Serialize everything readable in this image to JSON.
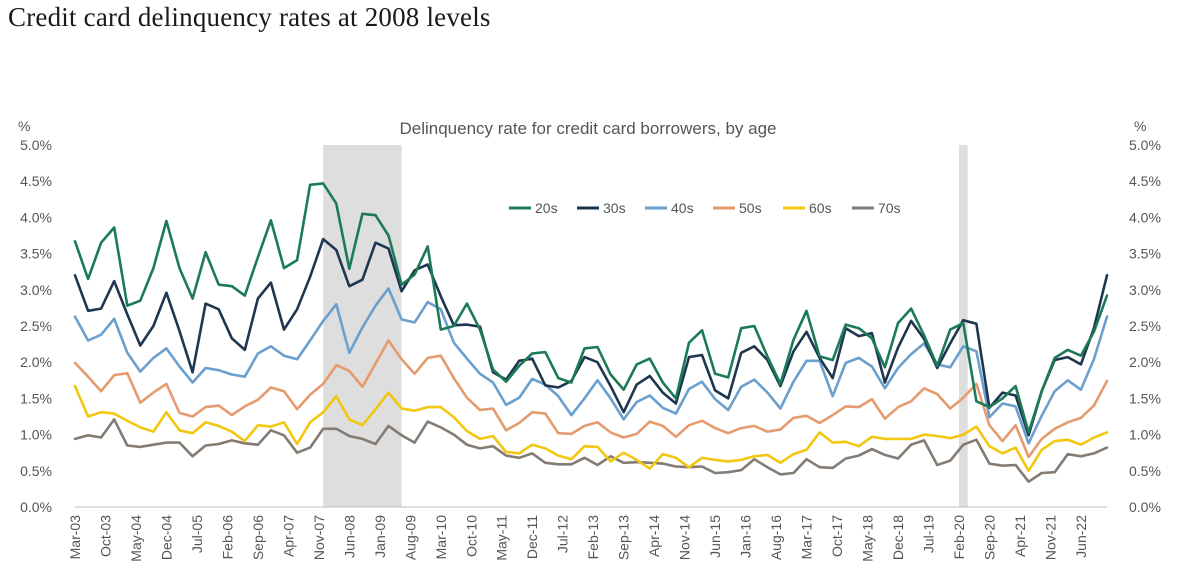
{
  "page": {
    "title": "Credit card delinquency rates at 2008 levels"
  },
  "chart_data": {
    "type": "line",
    "title": "Delinquency rate for credit card borrowers, by age",
    "ylabel_left": "%",
    "ylabel_right": "%",
    "ylim": [
      0,
      5
    ],
    "y_ticks": [
      "0.0%",
      "0.5%",
      "1.0%",
      "1.5%",
      "2.0%",
      "2.5%",
      "3.0%",
      "3.5%",
      "4.0%",
      "4.5%",
      "5.0%"
    ],
    "x_start": "2003-03",
    "x_end": "2022-12",
    "x_tick_labels": [
      "Mar-03",
      "Oct-03",
      "May-04",
      "Dec-04",
      "Jul-05",
      "Feb-06",
      "Sep-06",
      "Apr-07",
      "Nov-07",
      "Jun-08",
      "Jan-09",
      "Aug-09",
      "Mar-10",
      "Oct-10",
      "May-11",
      "Dec-11",
      "Jul-12",
      "Feb-13",
      "Sep-13",
      "Apr-14",
      "Nov-14",
      "Jun-15",
      "Jan-16",
      "Aug-16",
      "Mar-17",
      "Oct-17",
      "May-18",
      "Dec-18",
      "Jul-19",
      "Feb-20",
      "Sep-20",
      "Apr-21",
      "Nov-21",
      "Jun-22"
    ],
    "recessions": [
      {
        "start": "2007-12",
        "end": "2009-06"
      },
      {
        "start": "2020-02",
        "end": "2020-04"
      }
    ],
    "legend_position": "top-center",
    "series": [
      {
        "name": "20s",
        "color": "#1b7a57",
        "values": [
          3.67,
          3.15,
          3.65,
          3.86,
          2.78,
          2.85,
          3.3,
          3.95,
          3.3,
          2.88,
          3.52,
          3.07,
          3.05,
          2.92,
          3.45,
          3.96,
          3.3,
          3.41,
          4.45,
          4.47,
          4.19,
          3.29,
          4.05,
          4.03,
          3.75,
          3.07,
          3.21,
          3.6,
          2.45,
          2.5,
          2.81,
          2.45,
          1.9,
          1.73,
          1.95,
          2.12,
          2.14,
          1.78,
          1.72,
          2.19,
          2.21,
          1.83,
          1.62,
          1.97,
          2.05,
          1.72,
          1.5,
          2.27,
          2.44,
          1.84,
          1.79,
          2.47,
          2.5,
          2.08,
          1.7,
          2.31,
          2.71,
          2.08,
          2.03,
          2.52,
          2.47,
          2.33,
          1.93,
          2.54,
          2.74,
          2.37,
          1.95,
          2.45,
          2.54,
          1.46,
          1.38,
          1.5,
          1.67,
          1.03,
          1.6,
          2.06,
          2.17,
          2.09,
          2.42,
          2.92
        ]
      },
      {
        "name": "30s",
        "color": "#1f3650",
        "values": [
          3.2,
          2.71,
          2.74,
          3.12,
          2.66,
          2.23,
          2.5,
          2.96,
          2.43,
          1.86,
          2.81,
          2.73,
          2.33,
          2.17,
          2.88,
          3.1,
          2.45,
          2.73,
          3.18,
          3.7,
          3.55,
          3.05,
          3.14,
          3.65,
          3.57,
          2.98,
          3.27,
          3.35,
          2.91,
          2.51,
          2.52,
          2.49,
          1.86,
          1.76,
          2.02,
          2.05,
          1.68,
          1.65,
          1.74,
          2.07,
          2.0,
          1.67,
          1.31,
          1.69,
          1.81,
          1.58,
          1.43,
          2.07,
          2.1,
          1.61,
          1.5,
          2.13,
          2.22,
          2.03,
          1.67,
          2.15,
          2.42,
          2.06,
          1.78,
          2.47,
          2.36,
          2.4,
          1.72,
          2.2,
          2.57,
          2.32,
          1.92,
          2.26,
          2.58,
          2.53,
          1.37,
          1.58,
          1.54,
          0.99,
          1.6,
          2.03,
          2.07,
          1.97,
          2.47,
          3.2
        ]
      },
      {
        "name": "40s",
        "color": "#6a9fce",
        "values": [
          2.63,
          2.3,
          2.38,
          2.6,
          2.13,
          1.87,
          2.06,
          2.19,
          1.94,
          1.72,
          1.92,
          1.89,
          1.83,
          1.8,
          2.12,
          2.22,
          2.09,
          2.04,
          2.3,
          2.57,
          2.8,
          2.13,
          2.48,
          2.78,
          3.02,
          2.59,
          2.55,
          2.83,
          2.73,
          2.27,
          2.05,
          1.84,
          1.72,
          1.41,
          1.51,
          1.77,
          1.69,
          1.53,
          1.27,
          1.5,
          1.75,
          1.5,
          1.21,
          1.45,
          1.54,
          1.37,
          1.29,
          1.63,
          1.73,
          1.49,
          1.34,
          1.66,
          1.76,
          1.58,
          1.36,
          1.73,
          2.02,
          2.02,
          1.53,
          1.99,
          2.06,
          1.94,
          1.64,
          1.92,
          2.11,
          2.26,
          1.97,
          1.93,
          2.22,
          2.15,
          1.24,
          1.43,
          1.39,
          0.88,
          1.26,
          1.6,
          1.75,
          1.62,
          2.04,
          2.63
        ]
      },
      {
        "name": "50s",
        "color": "#e59b6e",
        "values": [
          1.99,
          1.8,
          1.6,
          1.82,
          1.85,
          1.44,
          1.58,
          1.7,
          1.3,
          1.25,
          1.38,
          1.4,
          1.27,
          1.39,
          1.48,
          1.65,
          1.6,
          1.35,
          1.55,
          1.7,
          1.96,
          1.88,
          1.66,
          1.98,
          2.3,
          2.04,
          1.84,
          2.06,
          2.09,
          1.78,
          1.51,
          1.34,
          1.36,
          1.06,
          1.16,
          1.31,
          1.29,
          1.02,
          1.01,
          1.12,
          1.17,
          1.03,
          0.96,
          1.01,
          1.18,
          1.12,
          0.97,
          1.13,
          1.19,
          1.09,
          1.02,
          1.09,
          1.12,
          1.04,
          1.07,
          1.23,
          1.26,
          1.16,
          1.27,
          1.39,
          1.38,
          1.49,
          1.22,
          1.38,
          1.46,
          1.64,
          1.56,
          1.36,
          1.51,
          1.7,
          1.13,
          0.91,
          1.13,
          0.69,
          0.94,
          1.08,
          1.17,
          1.23,
          1.4,
          1.74
        ]
      },
      {
        "name": "60s",
        "color": "#f2c70f",
        "values": [
          1.67,
          1.25,
          1.31,
          1.29,
          1.19,
          1.1,
          1.04,
          1.31,
          1.06,
          1.02,
          1.17,
          1.12,
          1.04,
          0.91,
          1.13,
          1.11,
          1.17,
          0.87,
          1.17,
          1.31,
          1.53,
          1.21,
          1.13,
          1.35,
          1.58,
          1.36,
          1.33,
          1.38,
          1.38,
          1.24,
          1.05,
          0.94,
          0.98,
          0.76,
          0.74,
          0.86,
          0.81,
          0.71,
          0.66,
          0.84,
          0.83,
          0.63,
          0.75,
          0.65,
          0.53,
          0.73,
          0.68,
          0.55,
          0.68,
          0.65,
          0.63,
          0.65,
          0.7,
          0.72,
          0.61,
          0.73,
          0.79,
          1.03,
          0.89,
          0.9,
          0.84,
          0.97,
          0.94,
          0.94,
          0.94,
          1.0,
          0.98,
          0.95,
          1.0,
          1.11,
          0.84,
          0.74,
          0.82,
          0.5,
          0.79,
          0.91,
          0.93,
          0.86,
          0.96,
          1.03
        ]
      },
      {
        "name": "70s",
        "color": "#847b73",
        "values": [
          0.94,
          0.99,
          0.96,
          1.21,
          0.85,
          0.83,
          0.86,
          0.89,
          0.89,
          0.7,
          0.85,
          0.87,
          0.92,
          0.88,
          0.86,
          1.06,
          0.99,
          0.75,
          0.82,
          1.08,
          1.08,
          0.98,
          0.94,
          0.87,
          1.12,
          0.99,
          0.89,
          1.18,
          1.1,
          1.0,
          0.86,
          0.81,
          0.84,
          0.71,
          0.68,
          0.74,
          0.61,
          0.59,
          0.59,
          0.68,
          0.58,
          0.7,
          0.61,
          0.62,
          0.61,
          0.6,
          0.56,
          0.55,
          0.56,
          0.47,
          0.48,
          0.51,
          0.66,
          0.55,
          0.45,
          0.47,
          0.66,
          0.55,
          0.54,
          0.67,
          0.71,
          0.8,
          0.72,
          0.67,
          0.86,
          0.92,
          0.58,
          0.64,
          0.86,
          0.93,
          0.6,
          0.57,
          0.58,
          0.35,
          0.47,
          0.48,
          0.73,
          0.7,
          0.74,
          0.82
        ]
      }
    ]
  }
}
